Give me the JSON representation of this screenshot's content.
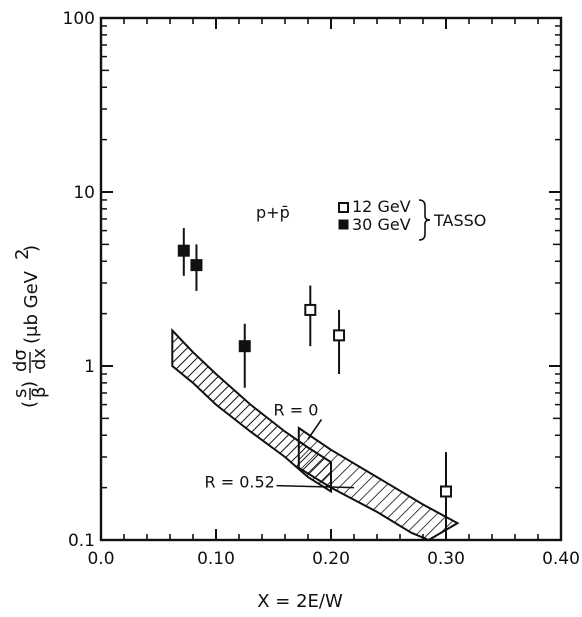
{
  "chart_data": {
    "type": "scatter",
    "xlabel": "X = 2E/W",
    "ylabel_parts": {
      "lead": "(",
      "s": "s",
      "beta": "β",
      "close": ")",
      "dsig": "dσ",
      "dx": "dx",
      "units": "(μb GeV",
      "sup": "2",
      "units_close": ")"
    },
    "xlim": [
      0.0,
      0.4
    ],
    "ylim": [
      0.1,
      100
    ],
    "yscale": "log",
    "x_ticks": [
      0.0,
      0.1,
      0.2,
      0.3,
      0.4
    ],
    "x_tick_labels": [
      "0.0",
      "0.10",
      "0.20",
      "0.30",
      "0.40"
    ],
    "y_ticks": [
      0.1,
      1,
      10,
      100
    ],
    "y_tick_labels": [
      "0.1",
      "1",
      "10",
      "100"
    ],
    "process_label": "p+p̄",
    "experiment_label": "TASSO",
    "series": [
      {
        "name": "12 GeV",
        "marker": "open-square",
        "points": [
          {
            "x": 0.182,
            "y": 2.1,
            "ylo": 1.3,
            "yhi": 2.9
          },
          {
            "x": 0.207,
            "y": 1.5,
            "ylo": 0.9,
            "yhi": 2.1
          },
          {
            "x": 0.3,
            "y": 0.19,
            "ylo": 0.11,
            "yhi": 0.32
          }
        ]
      },
      {
        "name": "30 GeV",
        "marker": "filled-square",
        "points": [
          {
            "x": 0.072,
            "y": 4.6,
            "ylo": 3.3,
            "yhi": 6.2
          },
          {
            "x": 0.083,
            "y": 3.8,
            "ylo": 2.7,
            "yhi": 5.0
          },
          {
            "x": 0.125,
            "y": 1.3,
            "ylo": 0.75,
            "yhi": 1.75
          }
        ]
      }
    ],
    "bands": [
      {
        "upper": [
          [
            0.062,
            1.6
          ],
          [
            0.08,
            1.2
          ],
          [
            0.1,
            0.9
          ],
          [
            0.13,
            0.6
          ],
          [
            0.16,
            0.42
          ],
          [
            0.18,
            0.34
          ],
          [
            0.2,
            0.28
          ]
        ],
        "lower": [
          [
            0.062,
            1.0
          ],
          [
            0.08,
            0.8
          ],
          [
            0.1,
            0.6
          ],
          [
            0.13,
            0.42
          ],
          [
            0.16,
            0.3
          ],
          [
            0.18,
            0.23
          ],
          [
            0.2,
            0.19
          ]
        ]
      },
      {
        "upper": [
          [
            0.172,
            0.44
          ],
          [
            0.2,
            0.33
          ],
          [
            0.24,
            0.23
          ],
          [
            0.28,
            0.16
          ],
          [
            0.31,
            0.125
          ]
        ],
        "lower": [
          [
            0.172,
            0.26
          ],
          [
            0.2,
            0.2
          ],
          [
            0.24,
            0.145
          ],
          [
            0.27,
            0.11
          ],
          [
            0.285,
            0.1
          ]
        ]
      }
    ],
    "annotations": [
      {
        "text": "R = 0",
        "x": 0.15,
        "y": 0.52
      },
      {
        "text": "R = 0.52",
        "x": 0.09,
        "y": 0.2
      }
    ]
  }
}
